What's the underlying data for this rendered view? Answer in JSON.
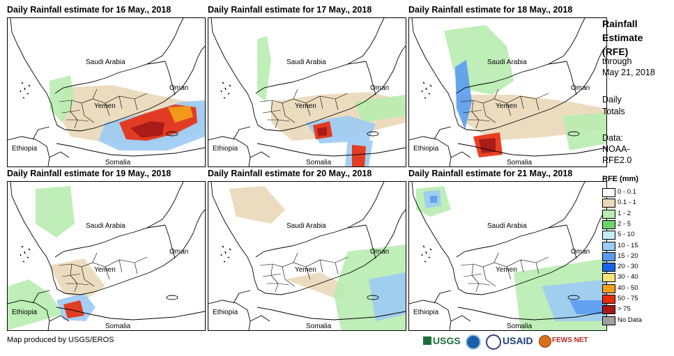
{
  "panels": [
    {
      "title": "Daily Rainfall estimate for 16 May., 2018"
    },
    {
      "title": "Daily Rainfall estimate for 17 May., 2018"
    },
    {
      "title": "Daily Rainfall estimate for 18 May., 2018"
    },
    {
      "title": "Daily Rainfall estimate for 19 May., 2018"
    },
    {
      "title": "Daily Rainfall estimate for 20 May., 2018"
    },
    {
      "title": "Daily Rainfall estimate for 21 May., 2018"
    }
  ],
  "map_labels": {
    "saudi": "Saudi Arabia",
    "oman": "Oman",
    "yemen": "Yemen",
    "ethiopia": "Ethiopia",
    "somalia": "Somalia"
  },
  "legend": {
    "title_lines": [
      "Rainfall",
      "Estimate",
      "(RFE)"
    ],
    "subtitle_lines": [
      "through",
      "May 21, 2018"
    ],
    "daily_lines": [
      "Daily",
      "Totals"
    ],
    "data_lines": [
      "Data:",
      "NOAA-",
      "RFE2.0"
    ],
    "unit": "RFE (mm)",
    "classes": [
      {
        "label": "0 - 0.1",
        "color": "#ffffff"
      },
      {
        "label": "0.1 - 1",
        "color": "#ead8b8"
      },
      {
        "label": "1 - 2",
        "color": "#b8ecb0"
      },
      {
        "label": "2 - 5",
        "color": "#6ed46a"
      },
      {
        "label": "5 - 10",
        "color": "#c4ecf6"
      },
      {
        "label": "10 - 15",
        "color": "#9ccaf4"
      },
      {
        "label": "15 - 20",
        "color": "#5a9cf0"
      },
      {
        "label": "20 - 30",
        "color": "#1c60ee"
      },
      {
        "label": "30 - 40",
        "color": "#f8e27c"
      },
      {
        "label": "40 - 50",
        "color": "#f4a21c"
      },
      {
        "label": "50 - 75",
        "color": "#e82c0c"
      },
      {
        "label": "> 75",
        "color": "#a41818"
      },
      {
        "label": "No Data",
        "color": "#a0a0a0"
      }
    ]
  },
  "credit": "Map produced by USGS/EROS",
  "logos": {
    "usgs": "USGS",
    "usaid": "USAID",
    "fews": "FEWS NET"
  }
}
